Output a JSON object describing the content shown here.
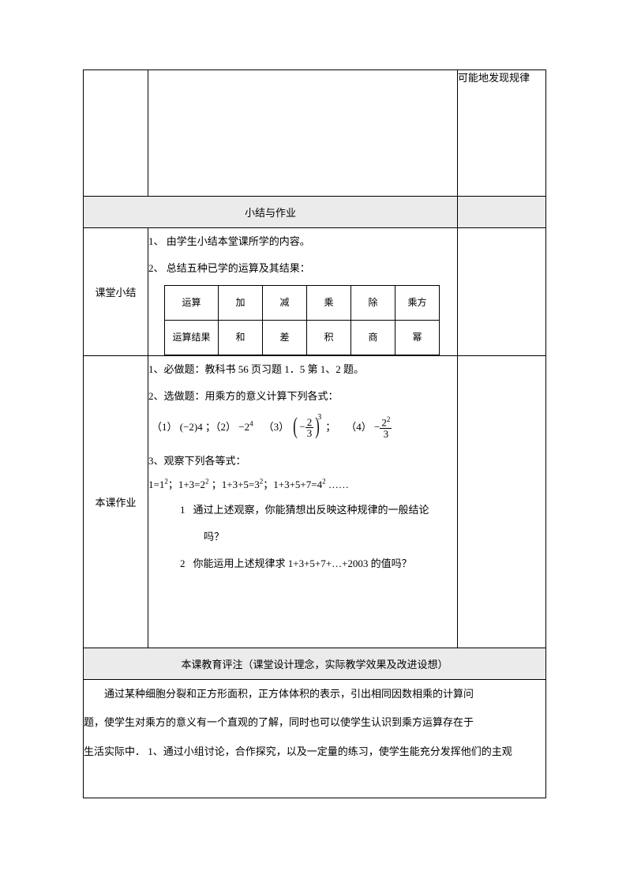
{
  "topRight": "可能地发现规律",
  "sectionHeader": "小结与作业",
  "summary": {
    "label": "课堂小结",
    "line1": "1、 由学生小结本堂课所学的内容。",
    "line2": "2、 总结五种已学的运算及其结果：",
    "table": {
      "row1": [
        "运算",
        "加",
        "减",
        "乘",
        "除",
        "乘方"
      ],
      "row2": [
        "运算结果",
        "和",
        "差",
        "积",
        "商",
        "幂"
      ]
    }
  },
  "homework": {
    "label": "本课作业",
    "line1": "1、必做题：教科书 56 页习题 1．5 第 1、2 题。",
    "line2": "2、选做题：用乘方的意义计算下列各式：",
    "eq": {
      "p1_label": "（1）",
      "p1_base": "(−2)",
      "p1_exp": "4",
      "sep1": "；（2）",
      "p2_base": "−2",
      "p2_exp": "4",
      "p3_label": "（3）",
      "frac_num": "2",
      "frac_den": "3",
      "p3_exp": "3",
      "sep3": "；",
      "p4_label": "（4）",
      "p4_num": "2",
      "p4_num_exp": "2",
      "p4_den": "3"
    },
    "line3": "3、观察下列各等式：",
    "seq_prefix": "1=",
    "seq_b1": "1",
    "seq_e1": "2",
    "seq_s1": "；1+3=",
    "seq_b2": "2",
    "seq_e2": "2",
    "seq_s2": " ；1+3+5=",
    "seq_b3": "3",
    "seq_e3": "2",
    "seq_s3": "；1+3+5+7=",
    "seq_b4": "4",
    "seq_e4": "2",
    "seq_tail": " ……",
    "q1_num": "1",
    "q1a": "通过上述观察，你能猜想出反映这种规律的一般结论",
    "q1b": "吗？",
    "q2_num": "2",
    "q2": "你能运用上述规律求 1+3+5+7+…+2003 的值吗？"
  },
  "commentHeader": "本课教育评注（课堂设计理念，实际教学效果及改进设想）",
  "commentBody": {
    "p1": "通过某种细胞分裂和正方形面积，正方体体积的表示，引出相同因数相乘的计算问",
    "p2": "题，使学生对乘方的意义有一个直观的了解，同时也可以使学生认识到乘方运算存在于",
    "p3": "生活实际中． 1、通过小组讨论，合作探究，以及一定量的练习，使学生能充分发挥他们的主观"
  }
}
